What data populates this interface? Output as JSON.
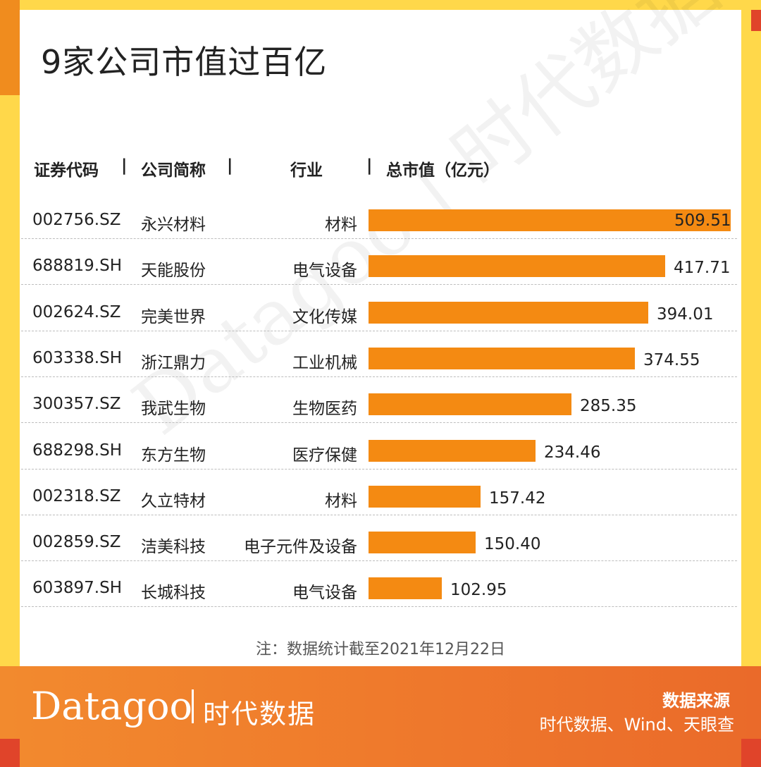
{
  "title": "9家公司市值过百亿",
  "watermark": "Datagoo | 时代数据",
  "headers": {
    "code": "证券代码",
    "name": "公司简称",
    "industry": "行业",
    "value": "总市值（亿元）",
    "separator": "|"
  },
  "colors": {
    "bar": "#f48a12",
    "frame_yellow": "#ffd84a",
    "frame_orange": "#f08c1e",
    "accent_red": "#e0442a"
  },
  "chart_data": {
    "type": "bar",
    "orientation": "horizontal",
    "title": "9家公司市值过百亿",
    "xlabel": "总市值（亿元）",
    "rows": [
      {
        "code": "002756.SZ",
        "name": "永兴材料",
        "industry": "材料",
        "value": 509.51,
        "label": "509.51"
      },
      {
        "code": "688819.SH",
        "name": "天能股份",
        "industry": "电气设备",
        "value": 417.71,
        "label": "417.71"
      },
      {
        "code": "002624.SZ",
        "name": "完美世界",
        "industry": "文化传媒",
        "value": 394.01,
        "label": "394.01"
      },
      {
        "code": "603338.SH",
        "name": "浙江鼎力",
        "industry": "工业机械",
        "value": 374.55,
        "label": "374.55"
      },
      {
        "code": "300357.SZ",
        "name": "我武生物",
        "industry": "生物医药",
        "value": 285.35,
        "label": "285.35"
      },
      {
        "code": "688298.SH",
        "name": "东方生物",
        "industry": "医疗保健",
        "value": 234.46,
        "label": "234.46"
      },
      {
        "code": "002318.SZ",
        "name": "久立特材",
        "industry": "材料",
        "value": 157.42,
        "label": "157.42"
      },
      {
        "code": "002859.SZ",
        "name": "洁美科技",
        "industry": "电子元件及设备",
        "value": 150.4,
        "label": "150.40"
      },
      {
        "code": "603897.SH",
        "name": "长城科技",
        "industry": "电气设备",
        "value": 102.95,
        "label": "102.95"
      }
    ],
    "xlim": [
      0,
      509.51
    ]
  },
  "note": "注：数据统计截至2021年12月22日",
  "footer": {
    "logo": "Datagoo",
    "logo_cn": "时代数据",
    "source_label": "数据来源",
    "source_text": "时代数据、Wind、天眼查"
  }
}
